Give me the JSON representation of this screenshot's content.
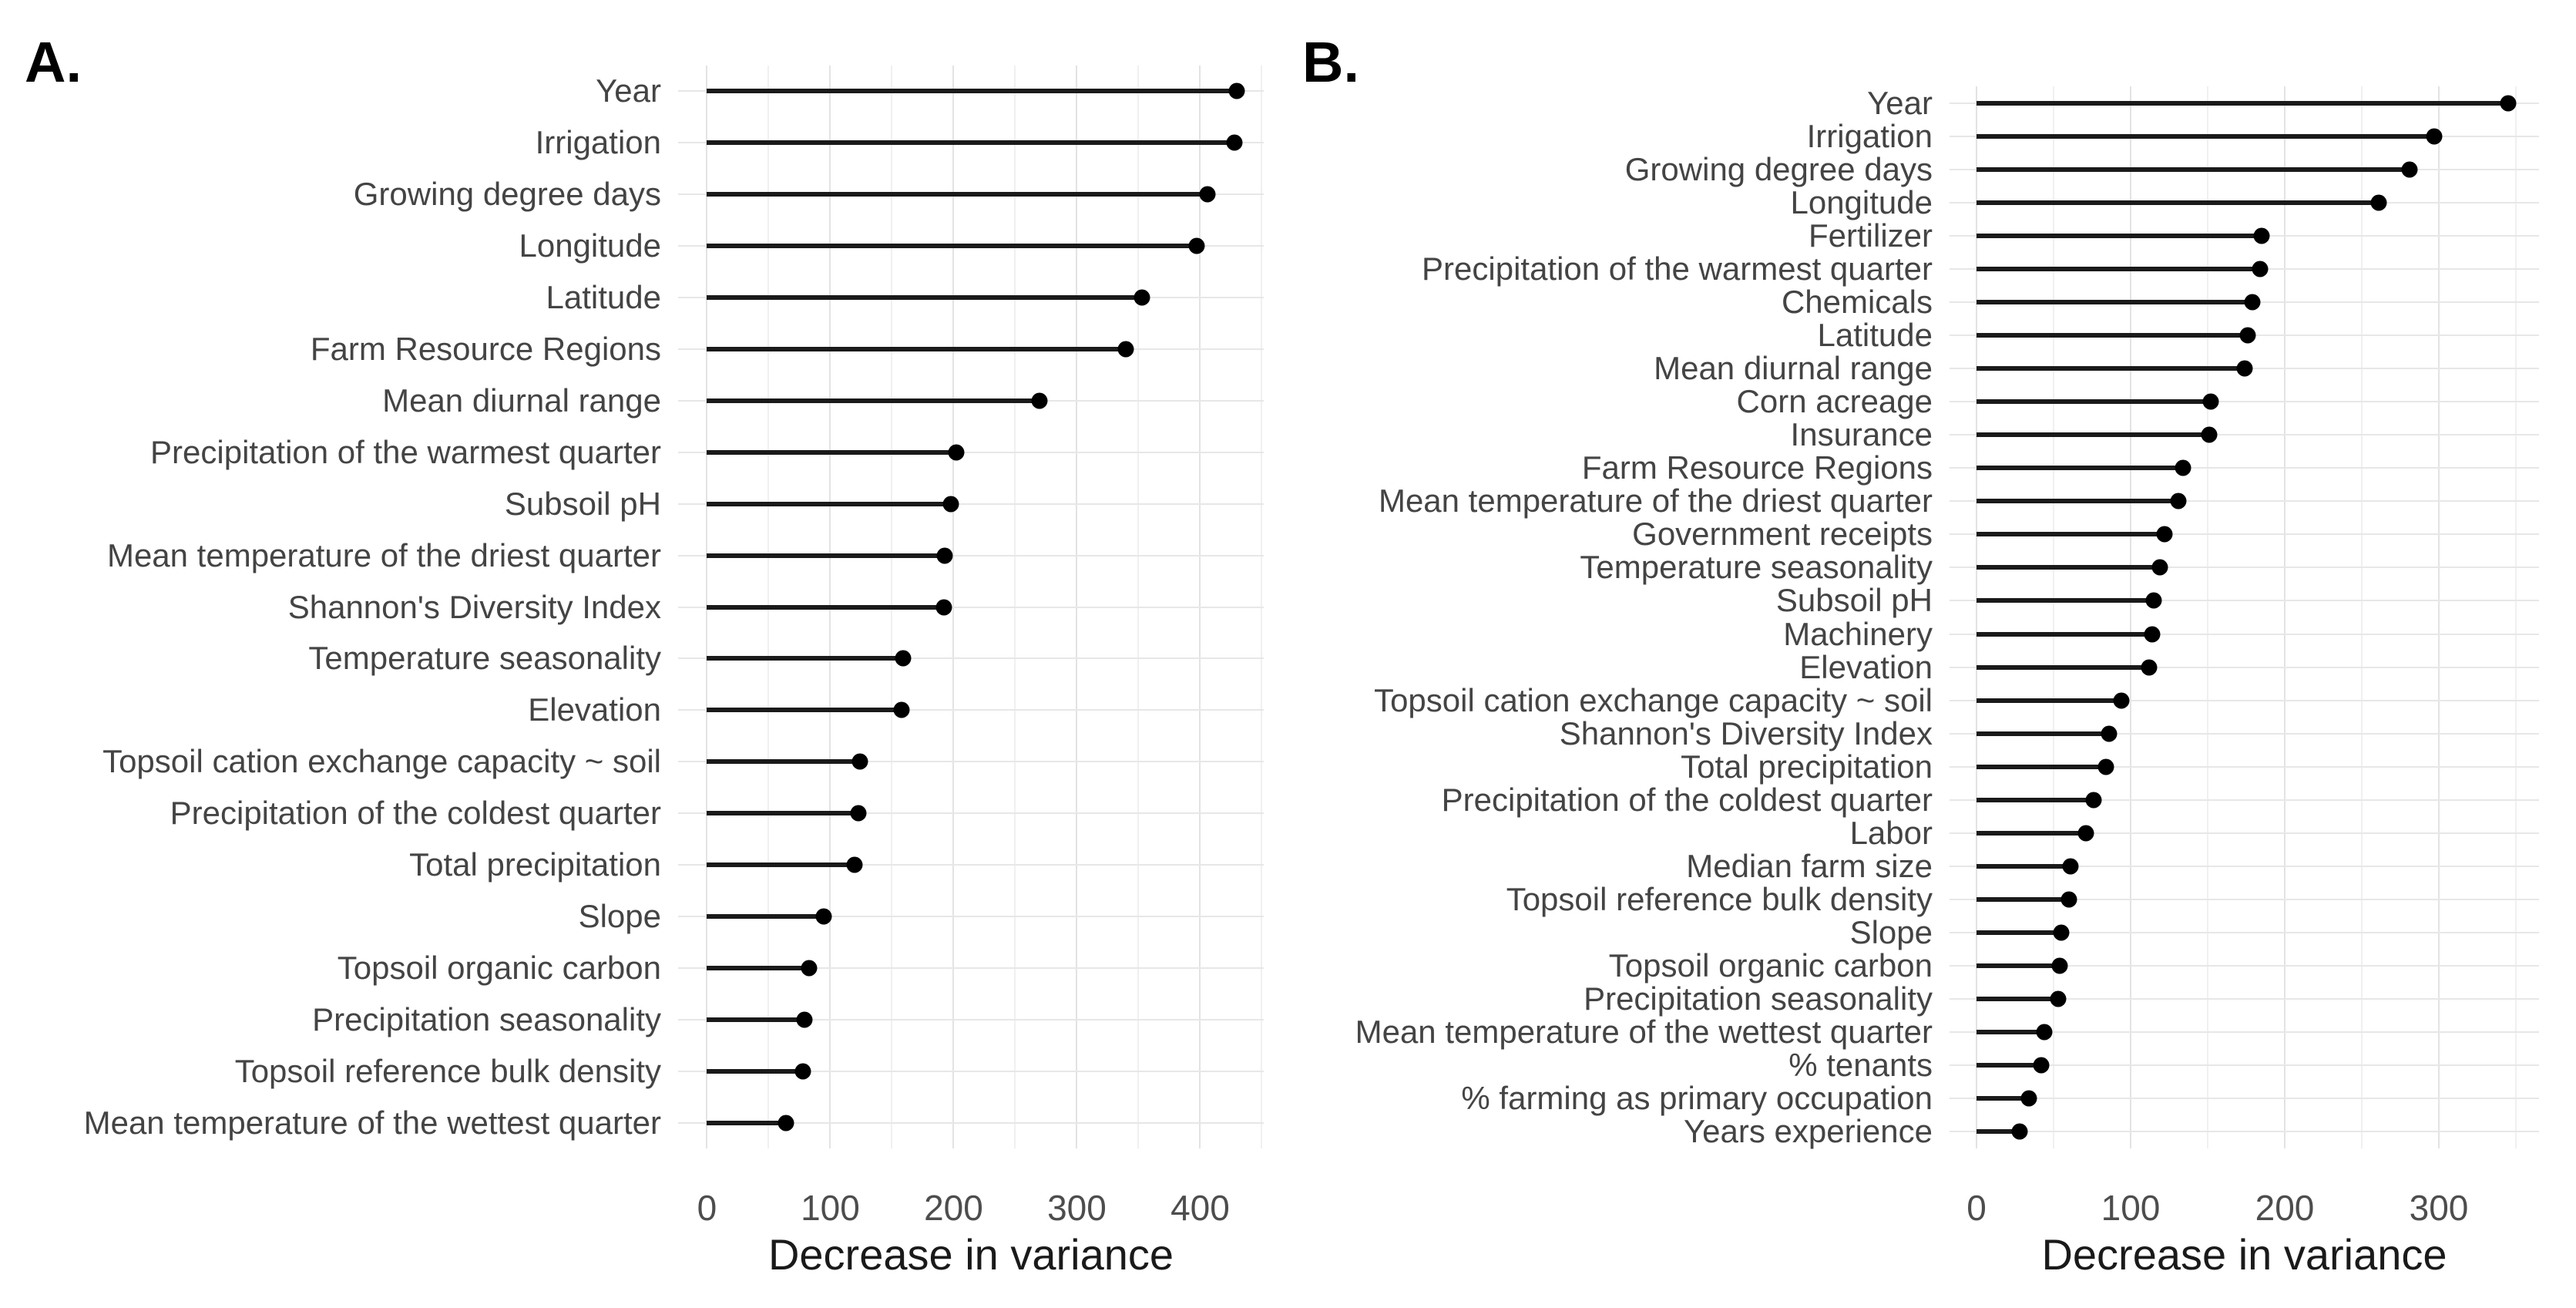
{
  "figure": {
    "background": "#ffffff"
  },
  "colors": {
    "dot": "#000000",
    "stem": "#1a1a1a",
    "grid_major": "#e3e3e3",
    "grid_minor": "#f0f0f0",
    "row_line": "#e7e7e7",
    "label_text": "#444444",
    "tick_text": "#4d4d4d",
    "axis_title_text": "#1a1a1a",
    "panel_tag_text": "#000000"
  },
  "chart_data": [
    {
      "type": "lollipop",
      "panel_label": "A.",
      "xlabel": "Decrease in variance",
      "x_ticks": [
        0,
        100,
        200,
        300,
        400
      ],
      "x_minor_ticks": [
        50,
        150,
        250,
        350,
        450
      ],
      "xlim": [
        -23.4,
        451.6
      ],
      "grid": true,
      "legend": "none",
      "categories": [
        "Year",
        "Irrigation",
        "Growing degree days",
        "Longitude",
        "Latitude",
        "Farm Resource Regions",
        "Mean diurnal range",
        "Precipitation of the warmest quarter",
        "Subsoil pH",
        "Mean temperature of the driest quarter",
        "Shannon's Diversity Index",
        "Temperature seasonality",
        "Elevation",
        "Topsoil cation exchange capacity ~ soil",
        "Precipitation of the coldest quarter",
        "Total precipitation",
        "Slope",
        "Topsoil organic carbon",
        "Precipitation seasonality",
        "Topsoil reference bulk density",
        "Mean temperature of the wettest quarter"
      ],
      "values": [
        430,
        428,
        406,
        397,
        353,
        340,
        270,
        202,
        198,
        193,
        192,
        159,
        158,
        124,
        123,
        120,
        95,
        83,
        79,
        78,
        64
      ]
    },
    {
      "type": "lollipop",
      "panel_label": "B.",
      "xlabel": "Decrease in variance",
      "x_ticks": [
        0,
        100,
        200,
        300
      ],
      "x_minor_ticks": [
        50,
        150,
        250,
        350
      ],
      "xlim": [
        -17.5,
        365
      ],
      "grid": true,
      "legend": "none",
      "categories": [
        "Year",
        "Irrigation",
        "Growing degree days",
        "Longitude",
        "Fertilizer",
        "Precipitation of the warmest quarter",
        "Chemicals",
        "Latitude",
        "Mean diurnal range",
        "Corn acreage",
        "Insurance",
        "Farm Resource Regions",
        "Mean temperature of the driest quarter",
        "Government receipts",
        "Temperature seasonality",
        "Subsoil pH",
        "Machinery",
        "Elevation",
        "Topsoil cation exchange capacity ~ soil",
        "Shannon's Diversity Index",
        "Total precipitation",
        "Precipitation of the coldest quarter",
        "Labor",
        "Median farm size",
        "Topsoil reference bulk density",
        "Slope",
        "Topsoil organic carbon",
        "Precipitation seasonality",
        "Mean temperature of the wettest quarter",
        "% tenants",
        "% farming as primary occupation",
        "Years experience"
      ],
      "values": [
        345,
        297,
        281,
        261,
        185,
        184,
        179,
        176,
        174,
        152,
        151,
        134,
        131,
        122,
        119,
        115,
        114,
        112,
        94,
        86,
        84,
        76,
        71,
        61,
        60,
        55,
        54,
        53,
        44,
        42,
        34,
        28
      ]
    }
  ]
}
